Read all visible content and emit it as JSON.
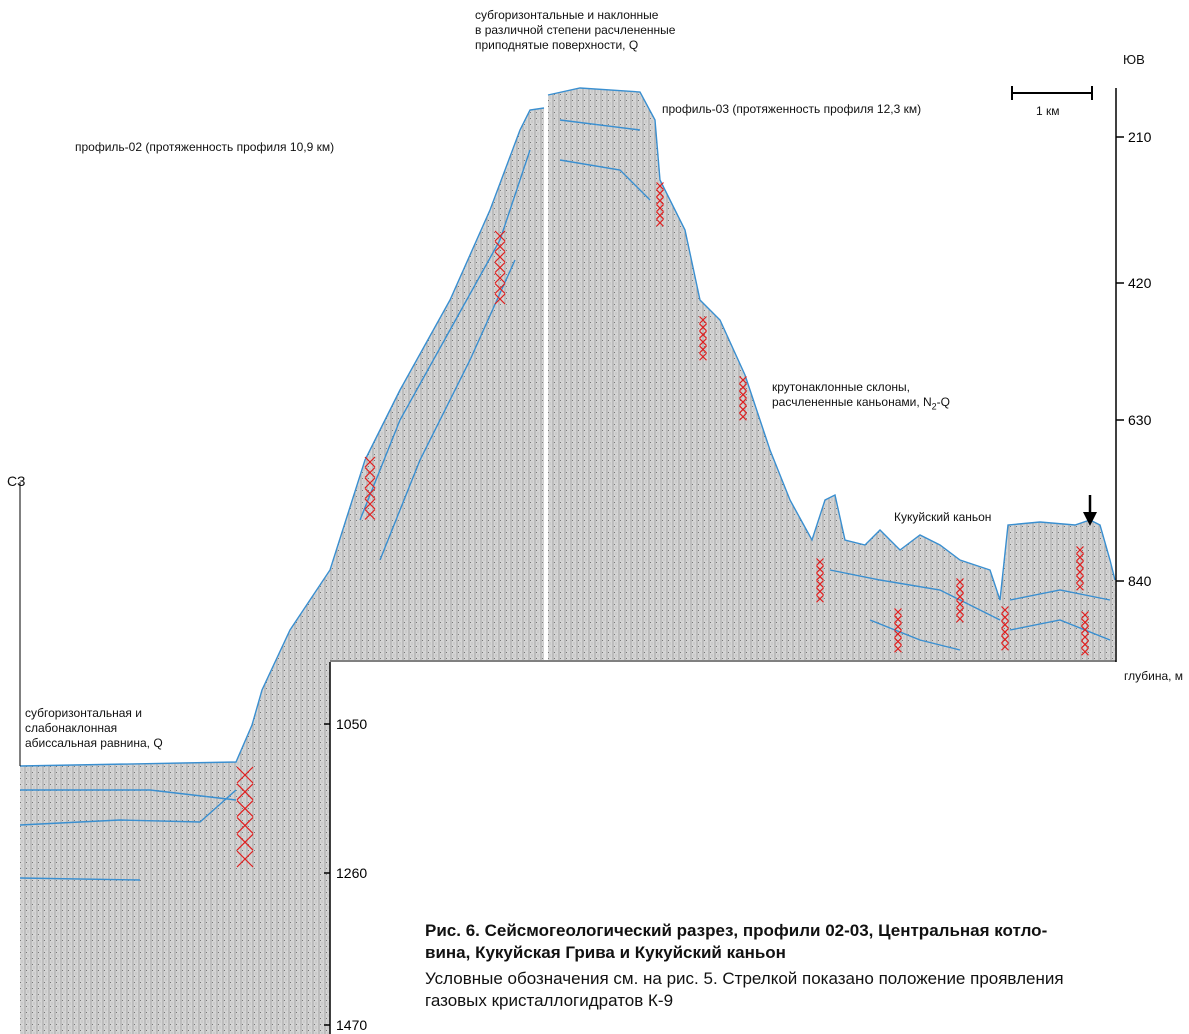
{
  "top_note": [
    "субгоризонтальные и наклонные",
    "в различной степени расчлененные",
    "приподнятые поверхности, Q"
  ],
  "direction_right": "ЮВ",
  "direction_left": "СЗ",
  "scale_bar": "1 км",
  "profile_03": "профиль-03 (протяженность профиля 12,3 км)",
  "profile_02": "профиль-02 (протяженность профиля 10,9 км)",
  "slopes_note": {
    "line1": "крутонаклонные склоны,",
    "line2_prefix": "расчлененные каньонами, N",
    "line2_sub": "2",
    "line2_suffix": "-Q"
  },
  "canyon_label": "Кукуйский каньон",
  "plain_note": [
    "субгоризонтальная и",
    "слабонаклонная",
    "абиссальная равнина, Q"
  ],
  "depth_axis_right": {
    "ticks": [
      210,
      420,
      630,
      840
    ],
    "label": "глубина, м"
  },
  "depth_axis_left": {
    "ticks": [
      1050,
      1260,
      1470
    ]
  },
  "caption": {
    "title": [
      "Рис. 6. Сейсмогеологический разрез, профили 02-03, Центральная котло-",
      "вина, Кукуйская Грива и Кукуйский каньон"
    ],
    "text": [
      "Условные обозначения см. на рис. 5. Стрелкой показано положение проявления",
      "газовых кристаллогидратов К-9"
    ]
  }
}
